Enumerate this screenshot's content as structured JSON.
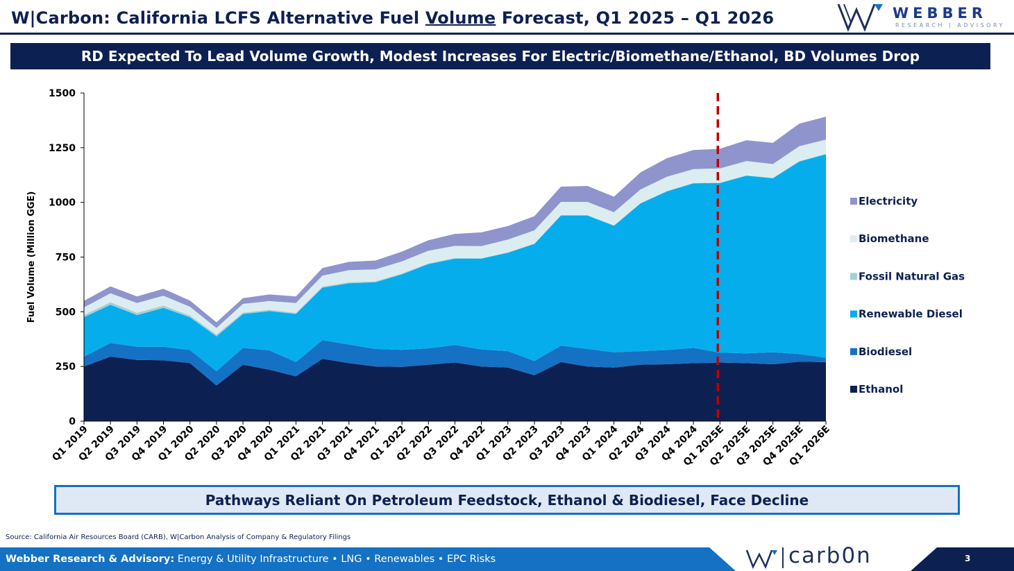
{
  "header": {
    "title_prefix": "W|Carbon: California LCFS Alternative Fuel ",
    "title_emph": "Volume",
    "title_suffix": " Forecast, Q1 2025 – Q1 2026",
    "logo_word": "WEBBER",
    "logo_sub": "RESEARCH | ADVISORY"
  },
  "banner": "RD Expected To Lead Volume Growth, Modest Increases For Electric/Biomethane/Ethanol, BD Volumes Drop",
  "callout": "Pathways Reliant On Petroleum Feedstock, Ethanol & Biodiesel, Face Decline",
  "source": "Source: California Air Resources Board (CARB), W|Carbon Analysis of Company & Regulatory Filings",
  "footer": {
    "company": "Webber Research & Advisory:",
    "tagline": " Energy & Utility Infrastructure • LNG • Renewables • EPC Risks",
    "logo_word": "carb0n",
    "page": "3"
  },
  "colors": {
    "navy": "#0d2052",
    "footer_blue": "#1471c4",
    "forecast_line": "#c00000"
  },
  "chart_data": {
    "type": "area",
    "stacked": true,
    "ylabel": "Fuel Volume (Million GGE)",
    "ylim": [
      0,
      1500
    ],
    "yticks": [
      0,
      250,
      500,
      750,
      1000,
      1250,
      1500
    ],
    "grid": false,
    "legend_position": "right",
    "forecast_marker": "Q1 2025E",
    "categories": [
      "Q1 2019",
      "Q2 2019",
      "Q3 2019",
      "Q4 2019",
      "Q1 2020",
      "Q2 2020",
      "Q3 2020",
      "Q4 2020",
      "Q1 2021",
      "Q2 2021",
      "Q3 2021",
      "Q4 2021",
      "Q1 2022",
      "Q2 2022",
      "Q3 2022",
      "Q4 2022",
      "Q1 2023",
      "Q2 2023",
      "Q3 2023",
      "Q4 2023",
      "Q1 2024",
      "Q2 2024",
      "Q3 2024",
      "Q4 2024",
      "Q1 2025E",
      "Q2 2025E",
      "Q3 2025E",
      "Q4 2025E",
      "Q1 2026E"
    ],
    "series": [
      {
        "name": "Ethanol",
        "color": "#0d2052",
        "values": [
          250,
          295,
          280,
          278,
          265,
          163,
          258,
          235,
          205,
          285,
          265,
          250,
          248,
          258,
          268,
          250,
          245,
          210,
          270,
          250,
          245,
          258,
          260,
          265,
          268,
          265,
          260,
          272,
          270
        ]
      },
      {
        "name": "Biodiesel",
        "color": "#1471c4",
        "values": [
          45,
          62,
          60,
          62,
          60,
          65,
          77,
          88,
          65,
          85,
          85,
          80,
          78,
          75,
          80,
          78,
          75,
          65,
          75,
          80,
          70,
          62,
          65,
          70,
          45,
          45,
          55,
          35,
          20
        ]
      },
      {
        "name": "Renewable Diesel",
        "color": "#06adec",
        "values": [
          180,
          175,
          145,
          178,
          150,
          160,
          155,
          180,
          220,
          240,
          280,
          305,
          345,
          385,
          395,
          415,
          450,
          535,
          595,
          610,
          578,
          675,
          725,
          752,
          775,
          812,
          795,
          880,
          930
        ]
      },
      {
        "name": "Fossil Natural Gas",
        "color": "#a6cfd5",
        "values": [
          10,
          12,
          10,
          10,
          8,
          8,
          6,
          6,
          5,
          5,
          5,
          4,
          4,
          3,
          3,
          2,
          2,
          2,
          2,
          2,
          2,
          2,
          2,
          2,
          2,
          2,
          2,
          2,
          2
        ]
      },
      {
        "name": "Biomethane",
        "color": "#dcedf2",
        "values": [
          35,
          40,
          45,
          45,
          40,
          30,
          40,
          40,
          45,
          50,
          55,
          55,
          55,
          58,
          55,
          55,
          58,
          60,
          60,
          60,
          60,
          62,
          65,
          63,
          65,
          65,
          63,
          68,
          65
        ]
      },
      {
        "name": "Electricity",
        "color": "#8f95cc",
        "values": [
          30,
          32,
          30,
          32,
          28,
          26,
          26,
          30,
          30,
          35,
          38,
          40,
          45,
          48,
          55,
          63,
          62,
          65,
          70,
          73,
          71,
          78,
          85,
          87,
          90,
          95,
          97,
          103,
          105
        ]
      }
    ]
  }
}
